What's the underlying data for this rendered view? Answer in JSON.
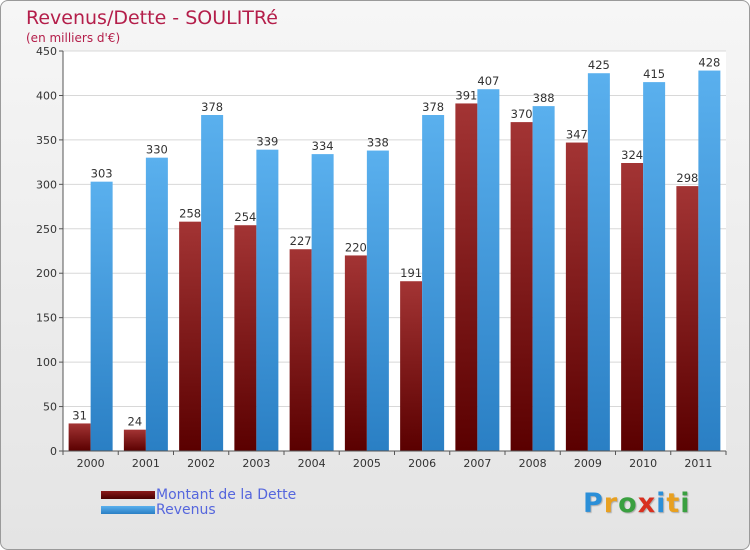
{
  "page": {
    "title": "Revenus/Dette - SOULITRé",
    "subtitle": "(en milliers d'€)"
  },
  "chart_data": {
    "type": "bar",
    "title": "Revenus/Dette - SOULITRé",
    "subtitle": "(en milliers d'€)",
    "xlabel": "",
    "ylabel": "",
    "ylim": [
      0,
      450
    ],
    "yticks": [
      0,
      50,
      100,
      150,
      200,
      250,
      300,
      350,
      400,
      450
    ],
    "grid": true,
    "legend_position": "bottom-left",
    "categories": [
      "2000",
      "2001",
      "2002",
      "2003",
      "2004",
      "2005",
      "2006",
      "2007",
      "2008",
      "2009",
      "2010",
      "2011"
    ],
    "series": [
      {
        "name": "Montant de la Dette",
        "color": "#8b1a1a",
        "values": [
          31,
          24,
          258,
          254,
          227,
          220,
          191,
          391,
          370,
          347,
          324,
          298
        ]
      },
      {
        "name": "Revenus",
        "color": "#3a9be0",
        "values": [
          303,
          330,
          378,
          339,
          334,
          338,
          378,
          407,
          388,
          425,
          415,
          428
        ]
      }
    ]
  },
  "logo": {
    "text": "Proxiti"
  }
}
